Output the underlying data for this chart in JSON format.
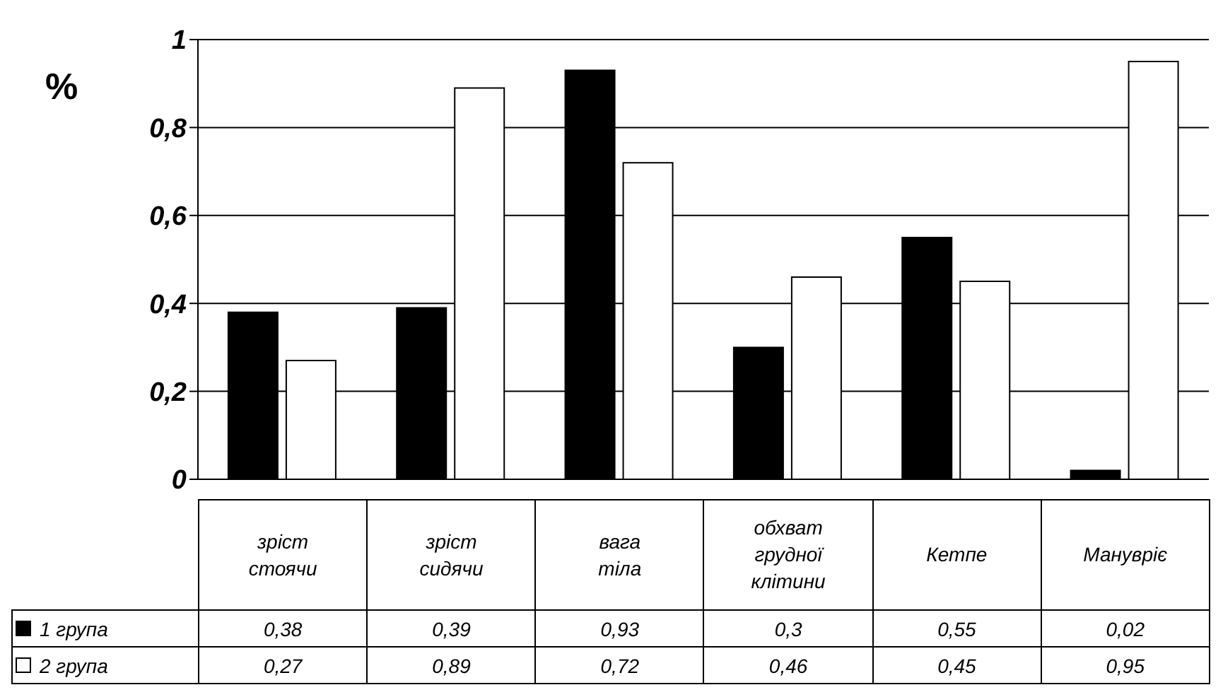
{
  "chart_data": {
    "type": "bar",
    "ylabel": "%",
    "categories": [
      "зріст стоячи",
      "зріст сидячи",
      "вага тіла",
      "обхват грудної клітини",
      "Кетпе",
      "Манувріє"
    ],
    "series": [
      {
        "name": "1 група",
        "color": "#000000",
        "values": [
          0.38,
          0.39,
          0.93,
          0.3,
          0.55,
          0.02
        ],
        "value_labels": [
          "0,38",
          "0,39",
          "0,93",
          "0,3",
          "0,55",
          "0,02"
        ]
      },
      {
        "name": "2 група",
        "color": "#ffffff",
        "values": [
          0.27,
          0.89,
          0.72,
          0.46,
          0.45,
          0.95
        ],
        "value_labels": [
          "0,27",
          "0,89",
          "0,72",
          "0,46",
          "0,45",
          "0,95"
        ]
      }
    ],
    "ylim": [
      0,
      1
    ],
    "yticks": [
      {
        "value": 0,
        "label": "0"
      },
      {
        "value": 0.2,
        "label": "0,2"
      },
      {
        "value": 0.4,
        "label": "0,4"
      },
      {
        "value": 0.6,
        "label": "0,6"
      },
      {
        "value": 0.8,
        "label": "0,8"
      },
      {
        "value": 1,
        "label": "1"
      }
    ],
    "grid": "y",
    "legend": "bottom"
  }
}
